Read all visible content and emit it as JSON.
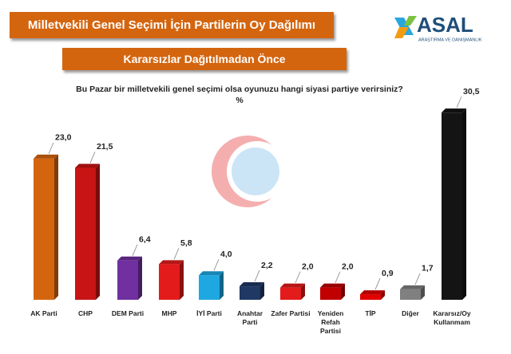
{
  "chart_data": {
    "type": "bar",
    "title": "Milletvekili Genel Seçimi İçin Partilerin Oy Dağılımı",
    "subtitle": "Kararsızlar Dağıtılmadan Önce",
    "question": "Bu Pazar bir milletvekili genel seçimi olsa oyunuzu hangi siyasi partiye verirsiniz?",
    "unit": "%",
    "logo": {
      "name": "ASAL",
      "tagline": "ARAŞTIRMA VE DANIŞMANLIK"
    },
    "categories": [
      "AK Parti",
      "CHP",
      "DEM Parti",
      "MHP",
      "İYİ Parti",
      "Anahtar Parti",
      "Zafer Partisi",
      "Yeniden Refah Partisi",
      "TİP",
      "Diğer",
      "Kararsız/Oy Kullanmam"
    ],
    "values": [
      23.0,
      21.5,
      6.4,
      5.8,
      4.0,
      2.2,
      2.0,
      2.0,
      0.9,
      1.7,
      30.5
    ],
    "value_labels": [
      "23,0",
      "21,5",
      "6,4",
      "5,8",
      "4,0",
      "2,2",
      "2,0",
      "2,0",
      "0,9",
      "1,7",
      "30,5"
    ],
    "colors": [
      "#d4650f",
      "#c81414",
      "#7030a0",
      "#e31b1b",
      "#1ea7e1",
      "#1f3864",
      "#e31b1b",
      "#c00000",
      "#e00000",
      "#808080",
      "#141414"
    ]
  }
}
